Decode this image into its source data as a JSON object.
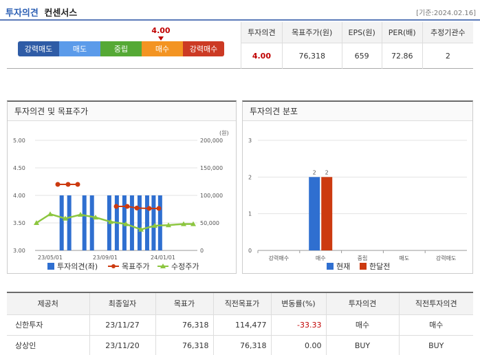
{
  "header": {
    "title_main": "투자의견",
    "title_sub": "컨센서스",
    "date_ref": "[기준:2024.02.16]"
  },
  "scale": {
    "current_value": "4.00",
    "segments": [
      {
        "label": "강력매도",
        "color": "#2f5ca6"
      },
      {
        "label": "매도",
        "color": "#5b9bea"
      },
      {
        "label": "중립",
        "color": "#55a935"
      },
      {
        "label": "매수",
        "color": "#f39422"
      },
      {
        "label": "강력매수",
        "color": "#cc3a24"
      }
    ],
    "pointer_fraction": 0.75
  },
  "summary": {
    "headers": [
      "투자의견",
      "목표주가(원)",
      "EPS(원)",
      "PER(배)",
      "추정기관수"
    ],
    "values": [
      "4.00",
      "76,318",
      "659",
      "72.86",
      "2"
    ]
  },
  "chart1": {
    "title": "투자의견 및 목표주가",
    "unit": "(원)",
    "left_ticks": [
      "5.00",
      "4.50",
      "4.00",
      "3.50",
      "3.00"
    ],
    "right_ticks": [
      "200,000",
      "150,000",
      "100,000",
      "50,000",
      "0"
    ],
    "x_ticks": [
      "23/05/01",
      "23/09/01",
      "24/01/01"
    ],
    "legend": [
      "투자의견(좌)",
      "목표주가",
      "수정주가"
    ],
    "colors": {
      "opinion": "#2f6fd0",
      "target": "#cc3a10",
      "price": "#8cc63f"
    }
  },
  "chart_data": [
    {
      "type": "bar+line",
      "title": "투자의견 및 목표주가",
      "left_axis": {
        "range": [
          3.0,
          5.0
        ]
      },
      "right_axis": {
        "range": [
          0,
          200000
        ],
        "label": "(원)"
      },
      "x_ticks": [
        "23/05/01",
        "23/09/01",
        "24/01/01"
      ],
      "series": [
        {
          "name": "투자의견(좌)",
          "type": "bar",
          "values": [
            4,
            4,
            4,
            4,
            4,
            4,
            4,
            4,
            4,
            4,
            4,
            4
          ]
        },
        {
          "name": "목표주가",
          "type": "line",
          "values": [
            120000,
            120000,
            120000,
            80000,
            80000,
            77000,
            76318,
            76318
          ]
        },
        {
          "name": "수정주가",
          "type": "line",
          "values": [
            50000,
            66000,
            58000,
            65000,
            60000,
            52000,
            48000,
            38000,
            45000,
            46000,
            48000,
            48000
          ]
        }
      ]
    },
    {
      "type": "bar",
      "title": "투자의견 분포",
      "categories": [
        "강력매수",
        "매수",
        "중립",
        "매도",
        "강력매도"
      ],
      "ylim": [
        0,
        3
      ],
      "series": [
        {
          "name": "현재",
          "values": [
            0,
            2,
            0,
            0,
            0
          ]
        },
        {
          "name": "한달전",
          "values": [
            0,
            2,
            0,
            0,
            0
          ]
        }
      ]
    }
  ],
  "chart2": {
    "title": "투자의견 분포",
    "y_ticks": [
      "3",
      "2",
      "1",
      "0"
    ],
    "categories": [
      "강력매수",
      "매수",
      "중립",
      "매도",
      "강력매도"
    ],
    "bar_labels": [
      "2",
      "2"
    ],
    "legend": [
      "현재",
      "한달전"
    ],
    "colors": {
      "current": "#2f6fd0",
      "prev": "#cc3a10"
    }
  },
  "table": {
    "headers": [
      "제공처",
      "최종일자",
      "목표가",
      "직전목표가",
      "변동률(%)",
      "투자의견",
      "직전투자의견"
    ],
    "rows": [
      [
        "신한투자",
        "23/11/27",
        "76,318",
        "114,477",
        "-33.33",
        "매수",
        "매수"
      ],
      [
        "상상인",
        "23/11/20",
        "76,318",
        "76,318",
        "0.00",
        "BUY",
        "BUY"
      ]
    ]
  }
}
